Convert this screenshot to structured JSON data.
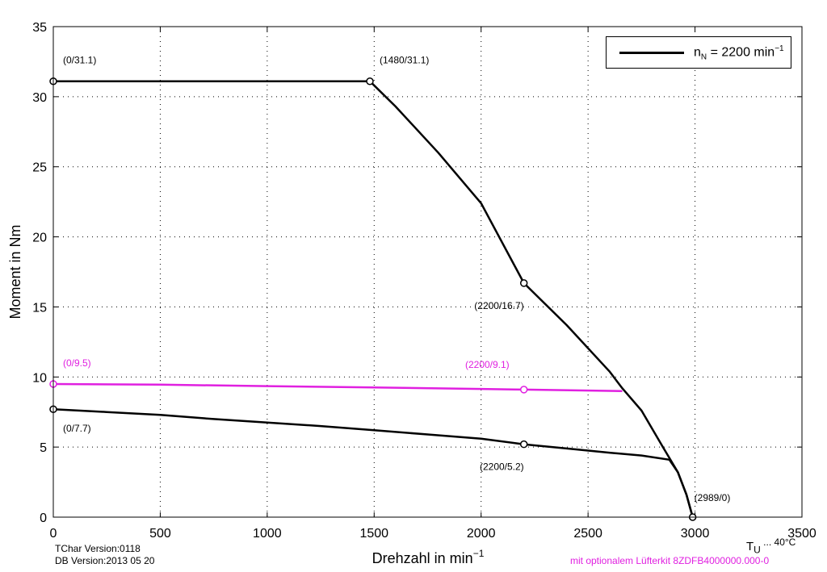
{
  "chart_data": {
    "type": "line",
    "xlabel": "Drehzahl in min",
    "xlabel_sup": "−1",
    "ylabel": "Moment in Nm",
    "xlim": [
      0,
      3500
    ],
    "ylim": [
      0,
      35
    ],
    "xticks": [
      0,
      500,
      1000,
      1500,
      2000,
      2500,
      3000,
      3500
    ],
    "yticks": [
      0,
      5,
      10,
      15,
      20,
      25,
      30,
      35
    ],
    "grid": true,
    "legend_position": "top-right",
    "legend": {
      "text_n": "n",
      "text_sub": "N",
      "text_mid": " = 2200 min",
      "text_sup": "−1"
    },
    "series": [
      {
        "key": "peak",
        "color": "#000000",
        "x": [
          0,
          1480,
          1600,
          1800,
          2000,
          2200,
          2400,
          2600,
          2660,
          2750,
          2850,
          2920,
          2960,
          2989
        ],
        "y": [
          31.1,
          31.1,
          29.3,
          26.0,
          22.4,
          16.7,
          13.7,
          10.4,
          9.2,
          7.6,
          5.0,
          3.2,
          1.6,
          0
        ]
      },
      {
        "key": "continuous",
        "color": "#000000",
        "x": [
          0,
          250,
          500,
          750,
          1000,
          1250,
          1500,
          1750,
          2000,
          2200,
          2400,
          2600,
          2750,
          2880,
          2920,
          2960,
          2989
        ],
        "y": [
          7.7,
          7.5,
          7.3,
          7.0,
          6.75,
          6.5,
          6.2,
          5.9,
          5.6,
          5.2,
          4.9,
          4.6,
          4.4,
          4.1,
          3.2,
          1.6,
          0
        ]
      },
      {
        "key": "fan_kit",
        "color": "#e020e0",
        "x": [
          0,
          500,
          1000,
          1500,
          2000,
          2200,
          2660
        ],
        "y": [
          9.5,
          9.45,
          9.35,
          9.25,
          9.15,
          9.1,
          9.0
        ]
      }
    ],
    "markers": [
      {
        "x": 0,
        "y": 31.1,
        "label": "(0/31.1)",
        "color": "#000000",
        "pos": "above-right"
      },
      {
        "x": 1480,
        "y": 31.1,
        "label": "(1480/31.1)",
        "color": "#000000",
        "pos": "above-right"
      },
      {
        "x": 2200,
        "y": 16.7,
        "label": "(2200/16.7)",
        "color": "#000000",
        "pos": "below-left"
      },
      {
        "x": 0,
        "y": 9.5,
        "label": "(0/9.5)",
        "color": "#e020e0",
        "pos": "above-right"
      },
      {
        "x": 2200,
        "y": 9.1,
        "label": "(2200/9.1)",
        "color": "#e020e0",
        "pos": "above-left"
      },
      {
        "x": 0,
        "y": 7.7,
        "label": "(0/7.7)",
        "color": "#000000",
        "pos": "below-right"
      },
      {
        "x": 2200,
        "y": 5.2,
        "label": "(2200/5.2)",
        "color": "#000000",
        "pos": "below-left"
      },
      {
        "x": 2989,
        "y": 0,
        "label": "(2989/0)",
        "color": "#000000",
        "pos": "above-right"
      }
    ]
  },
  "footer": {
    "version": "TChar Version:0118",
    "db_version": "DB Version:2013 05 20",
    "temp_prefix": "T",
    "temp_sub": "U",
    "temp_suffix": " ... 40°C",
    "fan_note": "mit optionalem Lüfterkit 8ZDFB4000000.000-0",
    "fan_note_color": "#e020e0"
  }
}
